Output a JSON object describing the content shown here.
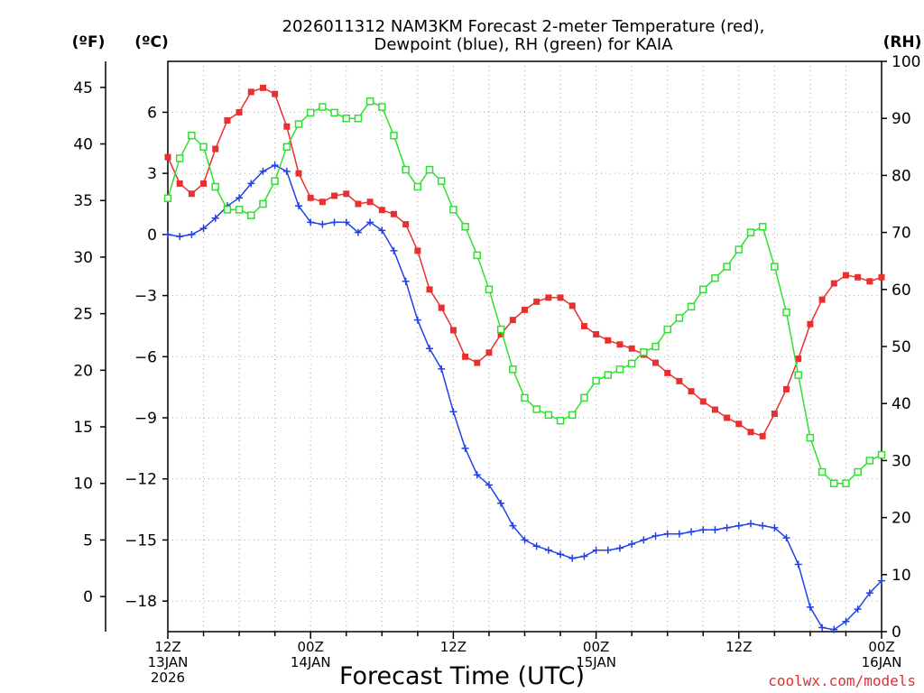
{
  "chart_data": {
    "type": "line",
    "title_line1": "2026011312 NAM3KM Forecast 2-meter Temperature (red),",
    "title_line2": "Dewpoint (blue), RH (green) for KAIA",
    "xlabel": "Forecast Time (UTC)",
    "credit": "coolwx.com/models",
    "units": {
      "fahrenheit": "(ºF)",
      "celsius": "(ºC)",
      "rh": "(RH)"
    },
    "x_hours_range": [
      0,
      60
    ],
    "celsius_range": [
      -19.5,
      8.5
    ],
    "rh_range": [
      0,
      100
    ],
    "fahrenheit_ticks": [
      {
        "value": 45,
        "label": "45"
      },
      {
        "value": 40,
        "label": "40"
      },
      {
        "value": 35,
        "label": "35"
      },
      {
        "value": 30,
        "label": "30"
      },
      {
        "value": 25,
        "label": "25"
      },
      {
        "value": 20,
        "label": "20"
      },
      {
        "value": 15,
        "label": "15"
      },
      {
        "value": 10,
        "label": "10"
      },
      {
        "value": 5,
        "label": "5"
      },
      {
        "value": 0,
        "label": "0"
      }
    ],
    "celsius_ticks": [
      {
        "value": 6,
        "label": "6"
      },
      {
        "value": 3,
        "label": "3"
      },
      {
        "value": 0,
        "label": "0"
      },
      {
        "value": -3,
        "label": "−3"
      },
      {
        "value": -6,
        "label": "−6"
      },
      {
        "value": -9,
        "label": "−9"
      },
      {
        "value": -12,
        "label": "−12"
      },
      {
        "value": -15,
        "label": "−15"
      },
      {
        "value": -18,
        "label": "−18"
      }
    ],
    "rh_ticks": [
      {
        "value": 100,
        "label": "100"
      },
      {
        "value": 90,
        "label": "90"
      },
      {
        "value": 80,
        "label": "80"
      },
      {
        "value": 70,
        "label": "70"
      },
      {
        "value": 60,
        "label": "60"
      },
      {
        "value": 50,
        "label": "50"
      },
      {
        "value": 40,
        "label": "40"
      },
      {
        "value": 30,
        "label": "30"
      },
      {
        "value": 20,
        "label": "20"
      },
      {
        "value": 10,
        "label": "10"
      },
      {
        "value": 0,
        "label": "0"
      }
    ],
    "x_ticks": [
      {
        "hour": 0,
        "lines": [
          "12Z",
          "13JAN",
          "2026"
        ]
      },
      {
        "hour": 12,
        "lines": [
          "00Z",
          "14JAN"
        ]
      },
      {
        "hour": 24,
        "lines": [
          "12Z"
        ]
      },
      {
        "hour": 36,
        "lines": [
          "00Z",
          "15JAN"
        ]
      },
      {
        "hour": 48,
        "lines": [
          "12Z"
        ]
      },
      {
        "hour": 60,
        "lines": [
          "00Z",
          "16JAN"
        ]
      }
    ],
    "series": [
      {
        "name": "2-meter Temperature",
        "axis": "celsius",
        "color": "#e83030",
        "marker": "filled-square",
        "x": [
          0,
          1,
          2,
          3,
          4,
          5,
          6,
          7,
          8,
          9,
          10,
          11,
          12,
          13,
          14,
          15,
          16,
          17,
          18,
          19,
          20,
          21,
          22,
          23,
          24,
          25,
          26,
          27,
          28,
          29,
          30,
          31,
          32,
          33,
          34,
          35,
          36,
          37,
          38,
          39,
          40,
          41,
          42,
          43,
          44,
          45,
          46,
          47,
          48,
          49,
          50,
          51,
          52,
          53,
          54,
          55,
          56,
          57,
          58,
          59,
          60
        ],
        "values": [
          3.8,
          2.5,
          2.0,
          2.5,
          4.2,
          5.6,
          6.0,
          7.0,
          7.2,
          6.9,
          5.3,
          3.0,
          1.8,
          1.6,
          1.9,
          2.0,
          1.5,
          1.6,
          1.2,
          1.0,
          0.5,
          -0.8,
          -2.7,
          -3.6,
          -4.7,
          -6.0,
          -6.3,
          -5.8,
          -4.9,
          -4.2,
          -3.7,
          -3.3,
          -3.1,
          -3.1,
          -3.5,
          -4.5,
          -4.9,
          -5.2,
          -5.4,
          -5.6,
          -5.9,
          -6.3,
          -6.8,
          -7.2,
          -7.7,
          -8.2,
          -8.6,
          -9.0,
          -9.3,
          -9.7,
          -9.9,
          -8.8,
          -7.6,
          -6.1,
          -4.4,
          -3.2,
          -2.4,
          -2.0,
          -2.1,
          -2.3,
          -2.1
        ]
      },
      {
        "name": "Dewpoint",
        "axis": "celsius",
        "color": "#2040e8",
        "marker": "plus",
        "x": [
          0,
          1,
          2,
          3,
          4,
          5,
          6,
          7,
          8,
          9,
          10,
          11,
          12,
          13,
          14,
          15,
          16,
          17,
          18,
          19,
          20,
          21,
          22,
          23,
          24,
          25,
          26,
          27,
          28,
          29,
          30,
          31,
          32,
          33,
          34,
          35,
          36,
          37,
          38,
          39,
          40,
          41,
          42,
          43,
          44,
          45,
          46,
          47,
          48,
          49,
          50,
          51,
          52,
          53,
          54,
          55,
          56,
          57,
          58,
          59,
          60
        ],
        "values": [
          0.0,
          -0.1,
          0.0,
          0.3,
          0.8,
          1.4,
          1.8,
          2.5,
          3.1,
          3.4,
          3.1,
          1.4,
          0.6,
          0.5,
          0.6,
          0.6,
          0.1,
          0.6,
          0.2,
          -0.8,
          -2.3,
          -4.2,
          -5.6,
          -6.6,
          -8.7,
          -10.5,
          -11.8,
          -12.3,
          -13.2,
          -14.3,
          -15.0,
          -15.3,
          -15.5,
          -15.7,
          -15.9,
          -15.8,
          -15.5,
          -15.5,
          -15.4,
          -15.2,
          -15.0,
          -14.8,
          -14.7,
          -14.7,
          -14.6,
          -14.5,
          -14.5,
          -14.4,
          -14.3,
          -14.2,
          -14.3,
          -14.4,
          -14.9,
          -16.2,
          -18.3,
          -19.3,
          -19.4,
          -19.0,
          -18.4,
          -17.6,
          -17.0
        ]
      },
      {
        "name": "RH",
        "axis": "rh",
        "color": "#30e030",
        "marker": "hollow-square",
        "x": [
          0,
          1,
          2,
          3,
          4,
          5,
          6,
          7,
          8,
          9,
          10,
          11,
          12,
          13,
          14,
          15,
          16,
          17,
          18,
          19,
          20,
          21,
          22,
          23,
          24,
          25,
          26,
          27,
          28,
          29,
          30,
          31,
          32,
          33,
          34,
          35,
          36,
          37,
          38,
          39,
          40,
          41,
          42,
          43,
          44,
          45,
          46,
          47,
          48,
          49,
          50,
          51,
          52,
          53,
          54,
          55,
          56,
          57,
          58,
          59,
          60
        ],
        "values": [
          76,
          83,
          87,
          85,
          78,
          74,
          74,
          73,
          75,
          79,
          85,
          89,
          91,
          92,
          91,
          90,
          90,
          93,
          92,
          87,
          81,
          78,
          81,
          79,
          74,
          71,
          66,
          60,
          53,
          46,
          41,
          39,
          38,
          37,
          38,
          41,
          44,
          45,
          46,
          47,
          49,
          50,
          53,
          55,
          57,
          60,
          62,
          64,
          67,
          70,
          71,
          64,
          56,
          45,
          34,
          28,
          26,
          26,
          28,
          30,
          31
        ]
      }
    ]
  }
}
